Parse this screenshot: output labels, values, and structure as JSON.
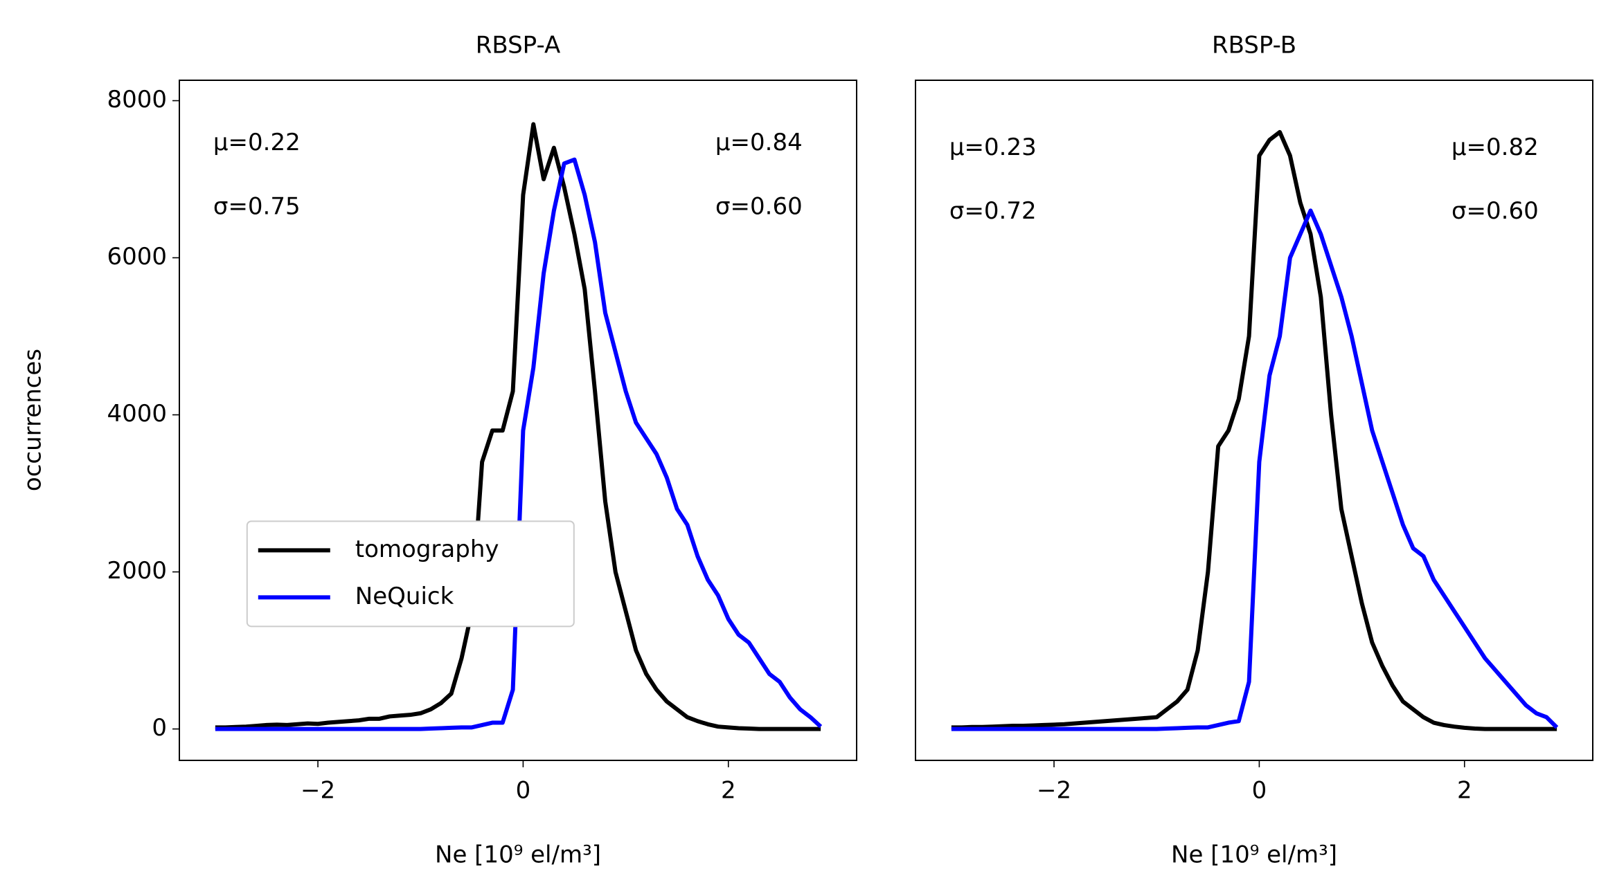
{
  "chart_data": [
    {
      "type": "line",
      "title": "RBSP-A",
      "x_label": "Ne [10⁹ el/m³]",
      "y_label": "occurrences",
      "x": [
        -3.0,
        -2.9,
        -2.8,
        -2.7,
        -2.6,
        -2.5,
        -2.4,
        -2.3,
        -2.2,
        -2.1,
        -2.0,
        -1.9,
        -1.8,
        -1.7,
        -1.6,
        -1.5,
        -1.4,
        -1.3,
        -1.2,
        -1.1,
        -1.0,
        -0.9,
        -0.8,
        -0.7,
        -0.6,
        -0.5,
        -0.4,
        -0.3,
        -0.2,
        -0.1,
        0.0,
        0.1,
        0.2,
        0.3,
        0.4,
        0.5,
        0.6,
        0.7,
        0.8,
        0.9,
        1.0,
        1.1,
        1.2,
        1.3,
        1.4,
        1.5,
        1.6,
        1.7,
        1.8,
        1.9,
        2.0,
        2.1,
        2.2,
        2.3,
        2.4,
        2.5,
        2.6,
        2.7,
        2.8,
        2.9
      ],
      "series": [
        {
          "name": "tomography",
          "color": "#000000",
          "values": [
            20,
            20,
            25,
            30,
            40,
            50,
            55,
            50,
            60,
            70,
            65,
            80,
            90,
            100,
            110,
            130,
            130,
            160,
            170,
            180,
            200,
            250,
            330,
            450,
            900,
            1500,
            3400,
            3800,
            3800,
            4300,
            6800,
            7700,
            7000,
            7400,
            6900,
            6300,
            5600,
            4300,
            2900,
            2000,
            1500,
            1000,
            700,
            500,
            350,
            250,
            150,
            100,
            60,
            30,
            20,
            10,
            5,
            0,
            0,
            0,
            0,
            0,
            0,
            0
          ]
        },
        {
          "name": "NeQuick",
          "color": "#0000ff",
          "values": [
            0,
            0,
            0,
            0,
            0,
            0,
            0,
            0,
            0,
            0,
            0,
            0,
            0,
            0,
            0,
            0,
            0,
            0,
            0,
            0,
            0,
            5,
            10,
            15,
            20,
            20,
            50,
            80,
            80,
            500,
            3800,
            4600,
            5800,
            6600,
            7200,
            7250,
            6800,
            6200,
            5300,
            4800,
            4300,
            3900,
            3700,
            3500,
            3200,
            2800,
            2600,
            2200,
            1900,
            1700,
            1400,
            1200,
            1100,
            900,
            700,
            600,
            400,
            250,
            150,
            30
          ]
        }
      ],
      "annotations": [
        {
          "text": "μ=0.22",
          "color": "#000000"
        },
        {
          "text": "σ=0.75",
          "color": "#000000"
        },
        {
          "text": "μ=0.84",
          "color": "#0000ff"
        },
        {
          "text": "σ=0.60",
          "color": "#0000ff"
        }
      ],
      "xlim": [
        -3.35,
        3.25
      ],
      "ylim": [
        -400,
        8260
      ],
      "xticks": [
        {
          "value": -2,
          "label": "−2"
        },
        0,
        2
      ],
      "yticks": [
        0,
        2000,
        4000,
        6000,
        8000
      ],
      "legend": "lower left"
    },
    {
      "type": "line",
      "title": "RBSP-B",
      "x_label": "Ne [10⁹ el/m³]",
      "x": [
        -3.0,
        -2.9,
        -2.8,
        -2.7,
        -2.6,
        -2.5,
        -2.4,
        -2.3,
        -2.2,
        -2.1,
        -2.0,
        -1.9,
        -1.8,
        -1.7,
        -1.6,
        -1.5,
        -1.4,
        -1.3,
        -1.2,
        -1.1,
        -1.0,
        -0.9,
        -0.8,
        -0.7,
        -0.6,
        -0.5,
        -0.4,
        -0.3,
        -0.2,
        -0.1,
        0.0,
        0.1,
        0.2,
        0.3,
        0.4,
        0.5,
        0.6,
        0.7,
        0.8,
        0.9,
        1.0,
        1.1,
        1.2,
        1.3,
        1.4,
        1.5,
        1.6,
        1.7,
        1.8,
        1.9,
        2.0,
        2.1,
        2.2,
        2.3,
        2.4,
        2.5,
        2.6,
        2.7,
        2.8,
        2.9
      ],
      "series": [
        {
          "color": "#000000",
          "values": [
            20,
            20,
            25,
            25,
            30,
            35,
            40,
            40,
            45,
            50,
            55,
            60,
            70,
            80,
            90,
            100,
            110,
            120,
            130,
            140,
            150,
            250,
            350,
            500,
            1000,
            2000,
            3600,
            3800,
            4200,
            5000,
            7300,
            7500,
            7600,
            7300,
            6700,
            6300,
            5500,
            4000,
            2800,
            2200,
            1600,
            1100,
            800,
            550,
            350,
            250,
            150,
            80,
            50,
            30,
            15,
            5,
            0,
            0,
            0,
            0,
            0,
            0,
            0,
            0
          ]
        },
        {
          "color": "#0000ff",
          "values": [
            0,
            0,
            0,
            0,
            0,
            0,
            0,
            0,
            0,
            0,
            0,
            0,
            0,
            0,
            0,
            0,
            0,
            0,
            0,
            0,
            0,
            5,
            10,
            15,
            20,
            20,
            50,
            80,
            100,
            600,
            3400,
            4500,
            5000,
            6000,
            6300,
            6600,
            6300,
            5900,
            5500,
            5000,
            4400,
            3800,
            3400,
            3000,
            2600,
            2300,
            2200,
            1900,
            1700,
            1500,
            1300,
            1100,
            900,
            750,
            600,
            450,
            300,
            200,
            150,
            20
          ]
        }
      ],
      "annotations": [
        {
          "text": "μ=0.23",
          "color": "#000000"
        },
        {
          "text": "σ=0.72",
          "color": "#000000"
        },
        {
          "text": "μ=0.82",
          "color": "#0000ff"
        },
        {
          "text": "σ=0.60",
          "color": "#0000ff"
        }
      ],
      "xlim": [
        -3.35,
        3.25
      ],
      "ylim": [
        -400,
        8260
      ],
      "xticks": [
        {
          "value": -2,
          "label": "−2"
        },
        0,
        2
      ]
    }
  ]
}
